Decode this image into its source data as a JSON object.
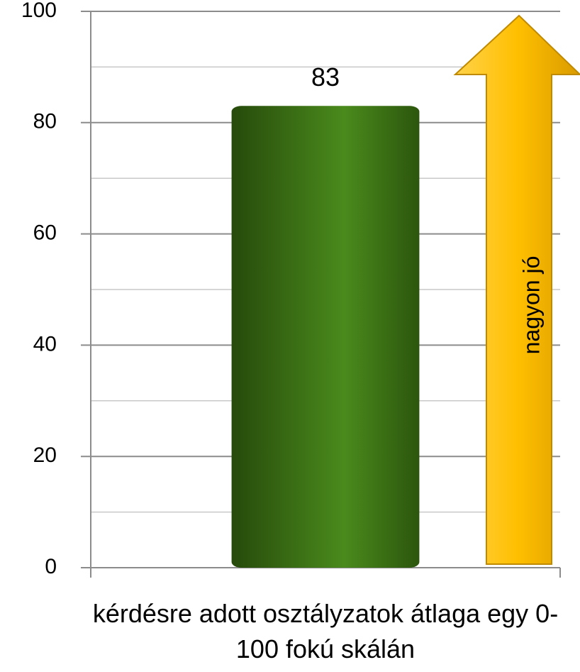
{
  "chart_data": {
    "type": "bar",
    "categories": [
      "kérdésre adott osztályzatok átlaga egy 0-100 fokú skálán"
    ],
    "values": [
      83
    ],
    "color": "#3f7316",
    "ylim": [
      0,
      100
    ],
    "yticks": [
      0,
      20,
      40,
      60,
      80,
      100
    ],
    "minor_yticks": [
      10,
      30,
      50,
      70,
      90
    ],
    "grid": true,
    "annotation": "nagyon jó"
  }
}
